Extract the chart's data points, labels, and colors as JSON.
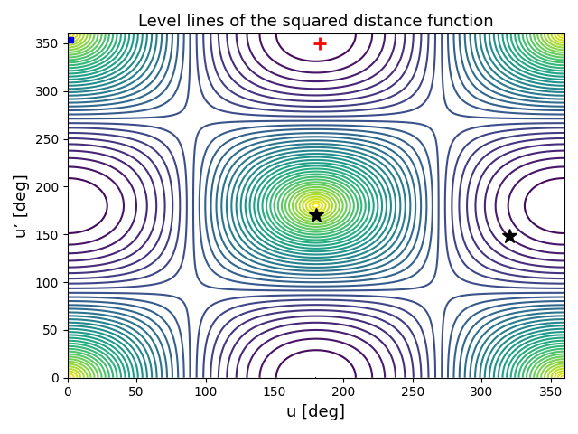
{
  "title": "Level lines of the squared distance function",
  "xlabel": "u [deg]",
  "ylabel": "u’ [deg]",
  "xlim": [
    0,
    360
  ],
  "ylim": [
    0,
    360
  ],
  "xticks": [
    0,
    50,
    100,
    150,
    200,
    250,
    300,
    350
  ],
  "yticks": [
    0,
    50,
    100,
    150,
    200,
    250,
    300,
    350
  ],
  "cmap": "viridis",
  "n_levels": 40,
  "star1_u": 180,
  "star1_uprime": 170,
  "star2_u": 320,
  "star2_uprime": 148,
  "red_cross_u": 183,
  "red_cross_uprime": 350,
  "blue_square_u": 2,
  "blue_square_uprime": 354,
  "u_ref": 180,
  "uprime_ref": 0,
  "figsize": [
    6.4,
    4.8
  ],
  "dpi": 100
}
